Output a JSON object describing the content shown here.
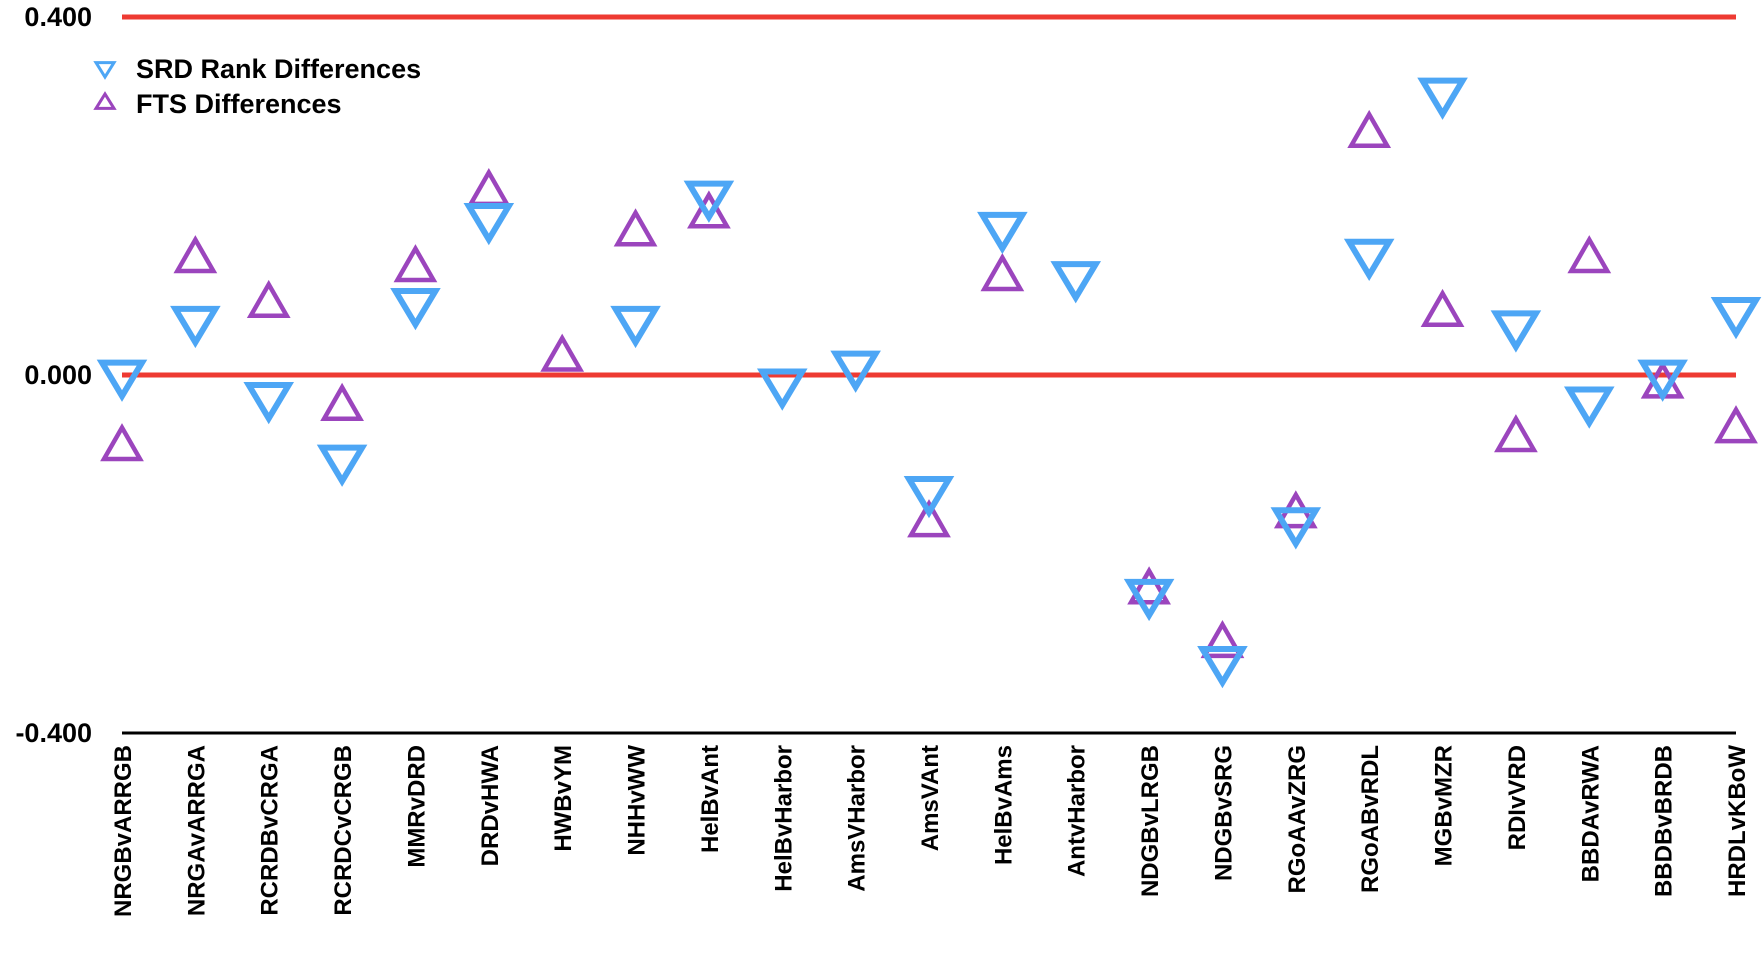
{
  "chart_data": {
    "type": "scatter",
    "categories": [
      "NRGBvARRGB",
      "NRGAvARRGA",
      "RCRDBvCRGA",
      "RCRDCvCRGB",
      "MMRvDRD",
      "DRDvHWA",
      "HWBvYM",
      "NHHvWW",
      "HelBvAnt",
      "HelBvHarbor",
      "AmsVHarbor",
      "AmsVAnt",
      "HelBvAms",
      "AntvHarbor",
      "NDGBvLRGB",
      "NDGBvSRG",
      "RGoAAvZRG",
      "RGoABvRDL",
      "MGBvMZR",
      "RDIvVRD",
      "BBDAvRWA",
      "BBDBvBRDB",
      "HRDLvKBoW"
    ],
    "series": [
      {
        "name": "SRD Rank Differences",
        "color": "#4da6f5",
        "marker": "triangle-down",
        "values": [
          0.0,
          0.06,
          -0.025,
          -0.095,
          0.08,
          0.175,
          null,
          0.06,
          0.2,
          -0.01,
          0.01,
          -0.13,
          0.165,
          0.11,
          -0.245,
          -0.32,
          -0.165,
          0.135,
          0.315,
          0.055,
          -0.03,
          0.0,
          0.07
        ]
      },
      {
        "name": "FTS Differences",
        "color": "#9b45bd",
        "marker": "triangle-up",
        "values": [
          -0.08,
          0.13,
          0.08,
          -0.035,
          0.12,
          0.205,
          0.02,
          0.16,
          0.18,
          null,
          null,
          -0.165,
          0.11,
          null,
          -0.24,
          -0.3,
          -0.155,
          0.27,
          0.07,
          -0.07,
          0.13,
          -0.01,
          -0.06
        ]
      }
    ],
    "yticks": [
      "0.400",
      "0.000",
      "-0.400"
    ],
    "ylim": [
      -0.4,
      0.4
    ],
    "reference_lines": [
      0.4,
      0.0
    ],
    "reference_line_color": "#ee3a32",
    "legend_position": "top-left",
    "grid": false
  }
}
